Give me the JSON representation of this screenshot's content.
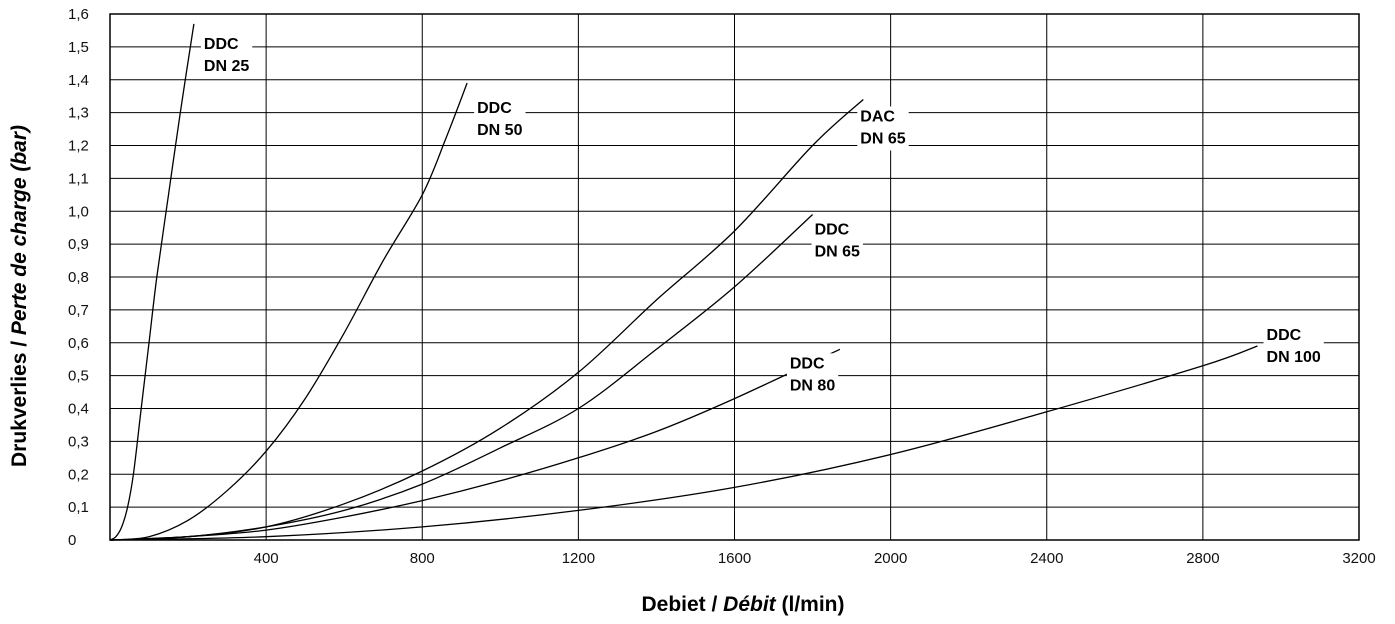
{
  "chart_data": {
    "type": "line",
    "xlabel": {
      "part1": "Debiet / ",
      "part2": "Débit",
      "part3": " (l/min)"
    },
    "ylabel": {
      "part1": "Drukverlies / ",
      "part2": "Perte de charge (bar)"
    },
    "xlim": [
      0,
      3200
    ],
    "ylim": [
      0,
      1.6
    ],
    "x_ticks": [
      400,
      800,
      1200,
      1600,
      2000,
      2400,
      2800,
      3200
    ],
    "y_ticks": [
      "0",
      "0,1",
      "0,2",
      "0,3",
      "0,4",
      "0,5",
      "0,6",
      "0,7",
      "0,8",
      "0,9",
      "1,0",
      "1,1",
      "1,2",
      "1,3",
      "1,4",
      "1,5",
      "1,6"
    ],
    "grid": true,
    "legend": "none",
    "series": [
      {
        "name": "DDC DN 25",
        "label_lines": [
          "DDC",
          "DN 25"
        ],
        "points": [
          [
            0,
            0
          ],
          [
            15,
            0.01
          ],
          [
            30,
            0.04
          ],
          [
            45,
            0.1
          ],
          [
            60,
            0.2
          ],
          [
            80,
            0.4
          ],
          [
            100,
            0.6
          ],
          [
            120,
            0.8
          ],
          [
            150,
            1.05
          ],
          [
            180,
            1.3
          ],
          [
            215,
            1.57
          ]
        ]
      },
      {
        "name": "DDC DN 50",
        "label_lines": [
          "DDC",
          "DN 50"
        ],
        "points": [
          [
            0,
            0
          ],
          [
            100,
            0.01
          ],
          [
            200,
            0.06
          ],
          [
            300,
            0.15
          ],
          [
            400,
            0.27
          ],
          [
            500,
            0.43
          ],
          [
            600,
            0.63
          ],
          [
            700,
            0.85
          ],
          [
            800,
            1.05
          ],
          [
            860,
            1.22
          ],
          [
            915,
            1.39
          ]
        ]
      },
      {
        "name": "DAC DN 65",
        "label_lines": [
          "DAC",
          "DN 65"
        ],
        "points": [
          [
            0,
            0
          ],
          [
            200,
            0.01
          ],
          [
            400,
            0.04
          ],
          [
            600,
            0.11
          ],
          [
            800,
            0.21
          ],
          [
            1000,
            0.34
          ],
          [
            1200,
            0.51
          ],
          [
            1400,
            0.73
          ],
          [
            1600,
            0.94
          ],
          [
            1800,
            1.2
          ],
          [
            1930,
            1.34
          ]
        ]
      },
      {
        "name": "DDC DN 65",
        "label_lines": [
          "DDC",
          "DN 65"
        ],
        "points": [
          [
            0,
            0
          ],
          [
            200,
            0.01
          ],
          [
            400,
            0.04
          ],
          [
            600,
            0.09
          ],
          [
            800,
            0.17
          ],
          [
            1000,
            0.28
          ],
          [
            1200,
            0.4
          ],
          [
            1400,
            0.58
          ],
          [
            1600,
            0.77
          ],
          [
            1800,
            0.99
          ]
        ]
      },
      {
        "name": "DDC DN 80",
        "label_lines": [
          "DDC",
          "DN 80"
        ],
        "points": [
          [
            0,
            0
          ],
          [
            200,
            0.01
          ],
          [
            400,
            0.03
          ],
          [
            600,
            0.07
          ],
          [
            800,
            0.12
          ],
          [
            1000,
            0.18
          ],
          [
            1200,
            0.25
          ],
          [
            1400,
            0.33
          ],
          [
            1600,
            0.43
          ],
          [
            1870,
            0.58
          ]
        ]
      },
      {
        "name": "DDC DN 100",
        "label_lines": [
          "DDC",
          "DN 100"
        ],
        "points": [
          [
            0,
            0
          ],
          [
            400,
            0.01
          ],
          [
            800,
            0.04
          ],
          [
            1200,
            0.09
          ],
          [
            1600,
            0.16
          ],
          [
            2000,
            0.26
          ],
          [
            2400,
            0.39
          ],
          [
            2800,
            0.53
          ],
          [
            2940,
            0.59
          ]
        ]
      }
    ]
  }
}
